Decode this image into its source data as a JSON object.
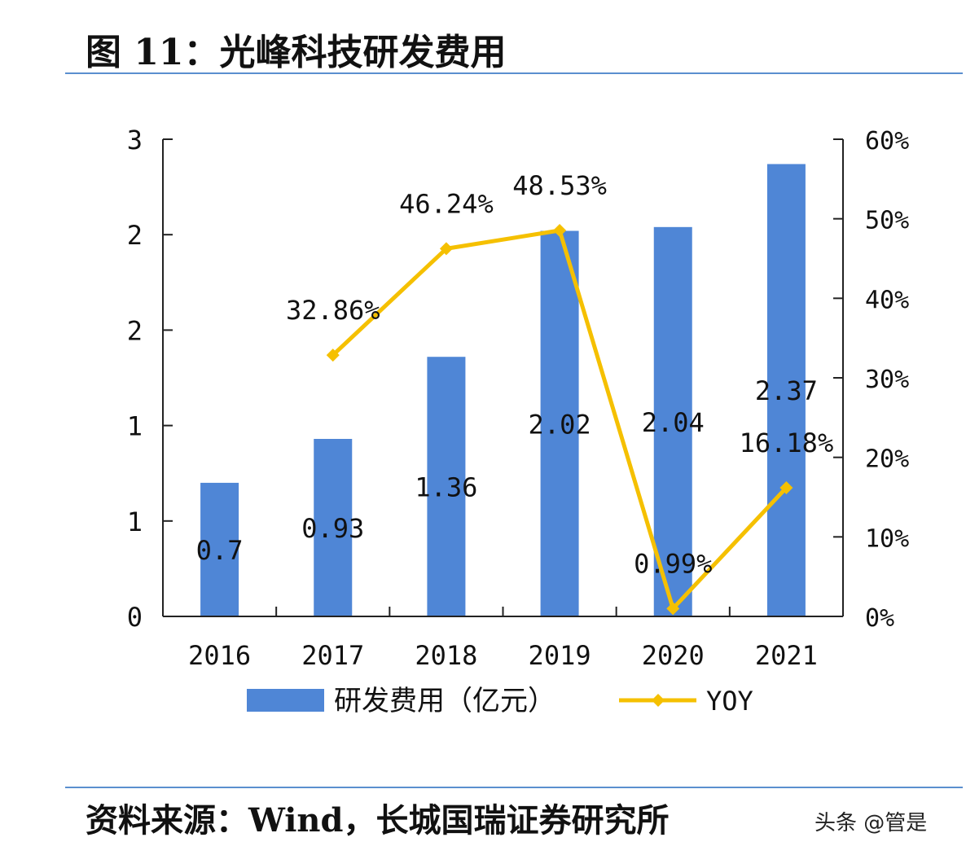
{
  "title": "图 11：光峰科技研发费用",
  "source": "资料来源：Wind，长城国瑞证券研究所",
  "watermark": "头条 @管是",
  "chart_data": {
    "type": "bar+line",
    "categories": [
      "2016",
      "2017",
      "2018",
      "2019",
      "2020",
      "2021"
    ],
    "series": [
      {
        "name": "研发费用（亿元）",
        "type": "bar",
        "axis": "left",
        "color": "#4f86d6",
        "values": [
          0.7,
          0.93,
          1.36,
          2.02,
          2.04,
          2.37
        ],
        "labels": [
          "0.7",
          "0.93",
          "1.36",
          "2.02",
          "2.04",
          "2.37"
        ]
      },
      {
        "name": "YOY",
        "type": "line",
        "axis": "right",
        "color": "#f5c000",
        "values": [
          null,
          32.86,
          46.24,
          48.53,
          0.99,
          16.18
        ],
        "labels": [
          "",
          "32.86%",
          "46.24%",
          "48.53%",
          "0.99%",
          "16.18%"
        ]
      }
    ],
    "left_axis": {
      "ylim": [
        0,
        2.5
      ],
      "ticks": [
        0,
        0.5,
        1,
        1.5,
        2,
        2.5
      ],
      "tick_labels": [
        "0",
        "1",
        "1",
        "2",
        "2",
        "3"
      ]
    },
    "right_axis": {
      "ylim": [
        0,
        60
      ],
      "ticks": [
        0,
        10,
        20,
        30,
        40,
        50,
        60
      ],
      "tick_labels": [
        "0%",
        "10%",
        "20%",
        "30%",
        "40%",
        "50%",
        "60%"
      ]
    },
    "grid": false,
    "legend": "bottom"
  }
}
